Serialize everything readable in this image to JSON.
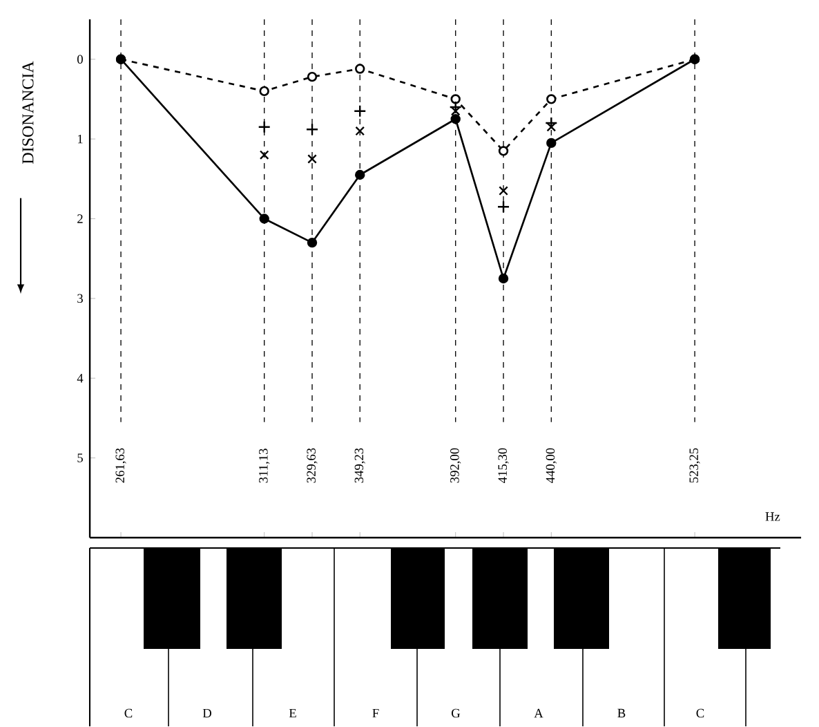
{
  "chart_data": {
    "type": "line",
    "xlabel": "Hz",
    "ylabel": "DISONANCIA",
    "log": "x",
    "x": [
      261.63,
      311.13,
      329.63,
      349.23,
      392.0,
      415.3,
      440.0,
      523.25
    ],
    "xlim": [
      252,
      595
    ],
    "xticks": [
      {
        "value": 261.63,
        "label": "261,63"
      },
      {
        "value": 311.13,
        "label": "311,13"
      },
      {
        "value": 329.63,
        "label": "329,63"
      },
      {
        "value": 349.23,
        "label": "349,23"
      },
      {
        "value": 392.0,
        "label": "392,00"
      },
      {
        "value": 415.3,
        "label": "415,30"
      },
      {
        "value": 440.0,
        "label": "440,00"
      },
      {
        "value": 523.25,
        "label": "523,25"
      }
    ],
    "ylim": [
      6,
      -0.5
    ],
    "yticks": [
      0,
      1,
      2,
      3,
      4,
      5
    ],
    "series": [
      {
        "color": "#000000",
        "line_style": "dashed",
        "marker": "circle",
        "values": [
          0,
          0.4,
          0.22,
          0.12,
          0.5,
          1.15,
          0.5,
          0
        ]
      },
      {
        "type": "scatter",
        "color": "#000000",
        "marker": "plus",
        "values": [
          null,
          0.85,
          0.88,
          0.65,
          0.6,
          1.85,
          0.8,
          null
        ]
      },
      {
        "type": "scatter",
        "color": "#000000",
        "marker": "cross",
        "values": [
          null,
          1.2,
          1.25,
          0.9,
          0.65,
          1.65,
          0.85,
          null
        ]
      },
      {
        "color": "#000000",
        "line_style": "solid",
        "marker": "circle",
        "values": [
          0,
          2.0,
          2.3,
          1.45,
          0.75,
          2.75,
          1.05,
          0
        ]
      }
    ],
    "ref_lines": [
      {
        "axis": "x",
        "value": 261.63,
        "line_style": "dashed"
      },
      {
        "axis": "x",
        "value": 311.13,
        "line_style": "dashed"
      },
      {
        "axis": "x",
        "value": 329.63,
        "line_style": "dashed"
      },
      {
        "axis": "x",
        "value": 349.23,
        "line_style": "dashed"
      },
      {
        "axis": "x",
        "value": 392.0,
        "line_style": "dashed"
      },
      {
        "axis": "x",
        "value": 415.3,
        "line_style": "dashed"
      },
      {
        "axis": "x",
        "value": 440.0,
        "line_style": "dashed"
      },
      {
        "axis": "x",
        "value": 523.25,
        "line_style": "dashed"
      }
    ],
    "annotations": [
      "C",
      "D",
      "E",
      "F",
      "G",
      "A",
      "B",
      "C"
    ]
  }
}
